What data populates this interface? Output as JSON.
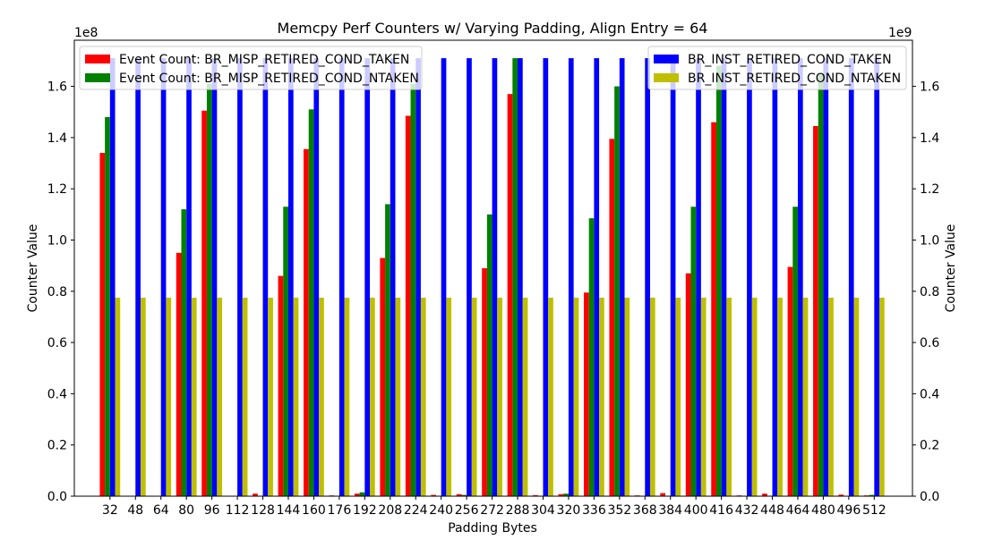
{
  "chart_data": {
    "type": "bar",
    "title": "Memcpy Perf Counters w/ Varying Padding, Align Entry = 64",
    "xlabel": "Padding Bytes",
    "ylabel_left": "Counter Value",
    "ylabel_right": "Counter Value",
    "left_axis_multiplier": "1e8",
    "right_axis_multiplier": "1e9",
    "ylim_left": [
      0,
      178000000.0
    ],
    "ylim_right": [
      0,
      1780000000.0
    ],
    "left_ticks": [
      0,
      20000000.0,
      40000000.0,
      60000000.0,
      80000000.0,
      100000000.0,
      120000000.0,
      140000000.0,
      160000000.0
    ],
    "left_tick_labels": [
      "0.0",
      "0.2",
      "0.4",
      "0.6",
      "0.8",
      "1.0",
      "1.2",
      "1.4",
      "1.6"
    ],
    "right_ticks": [
      0,
      200000000.0,
      400000000.0,
      600000000.0,
      800000000.0,
      1000000000.0,
      1200000000.0,
      1400000000.0,
      1600000000.0
    ],
    "right_tick_labels": [
      "0.0",
      "0.2",
      "0.4",
      "0.6",
      "0.8",
      "1.0",
      "1.2",
      "1.4",
      "1.6"
    ],
    "categories": [
      "32",
      "48",
      "64",
      "80",
      "96",
      "112",
      "128",
      "144",
      "160",
      "176",
      "192",
      "208",
      "224",
      "240",
      "256",
      "272",
      "288",
      "304",
      "320",
      "336",
      "352",
      "368",
      "384",
      "400",
      "416",
      "432",
      "448",
      "464",
      "480",
      "496",
      "512"
    ],
    "grid": false,
    "legend_left_placement": "top-left",
    "legend_right_placement": "top-right",
    "series": [
      {
        "name": "Event Count: BR_MISP_RETIRED_COND_TAKEN",
        "axis": "left",
        "color": "#ff0000",
        "values": [
          134000000.0,
          0,
          0,
          95000000.0,
          150500000.0,
          0,
          1000000.0,
          86000000.0,
          135500000.0,
          300000.0,
          1000000.0,
          93000000.0,
          148500000.0,
          500000.0,
          800000.0,
          89000000.0,
          157000000.0,
          400000.0,
          800000.0,
          79500000.0,
          139500000.0,
          300000.0,
          1200000.0,
          87000000.0,
          146000000.0,
          300000.0,
          1000000.0,
          89500000.0,
          144500000.0,
          600000.0,
          300000.0
        ]
      },
      {
        "name": "Event Count: BR_MISP_RETIRED_COND_NTAKEN",
        "axis": "left",
        "color": "#008000",
        "values": [
          148000000.0,
          0,
          0,
          112000000.0,
          161000000.0,
          0,
          0,
          113000000.0,
          151000000.0,
          0,
          1500000.0,
          114000000.0,
          161000000.0,
          0,
          500000.0,
          110000000.0,
          171000000.0,
          0,
          1000000.0,
          108500000.0,
          160000000.0,
          0,
          0,
          113000000.0,
          168000000.0,
          0,
          0,
          113000000.0,
          165000000.0,
          0,
          500000.0
        ]
      },
      {
        "name": "BR_INST_RETIRED_COND_TAKEN",
        "axis": "right",
        "color": "#0000ff",
        "values": [
          1710000000.0,
          1710000000.0,
          1710000000.0,
          1710000000.0,
          1710000000.0,
          1710000000.0,
          1710000000.0,
          1710000000.0,
          1710000000.0,
          1710000000.0,
          1710000000.0,
          1710000000.0,
          1710000000.0,
          1710000000.0,
          1710000000.0,
          1710000000.0,
          1710000000.0,
          1710000000.0,
          1710000000.0,
          1710000000.0,
          1710000000.0,
          1710000000.0,
          1710000000.0,
          1710000000.0,
          1710000000.0,
          1710000000.0,
          1710000000.0,
          1710000000.0,
          1710000000.0,
          1710000000.0,
          1710000000.0
        ]
      },
      {
        "name": "BR_INST_RETIRED_COND_NTAKEN",
        "axis": "right",
        "color": "#bfbf00",
        "values": [
          775000000.0,
          775000000.0,
          775000000.0,
          775000000.0,
          775000000.0,
          775000000.0,
          775000000.0,
          775000000.0,
          775000000.0,
          775000000.0,
          775000000.0,
          775000000.0,
          775000000.0,
          775000000.0,
          775000000.0,
          775000000.0,
          775000000.0,
          775000000.0,
          775000000.0,
          775000000.0,
          775000000.0,
          775000000.0,
          775000000.0,
          775000000.0,
          775000000.0,
          775000000.0,
          775000000.0,
          775000000.0,
          775000000.0,
          775000000.0,
          775000000.0
        ]
      }
    ]
  }
}
